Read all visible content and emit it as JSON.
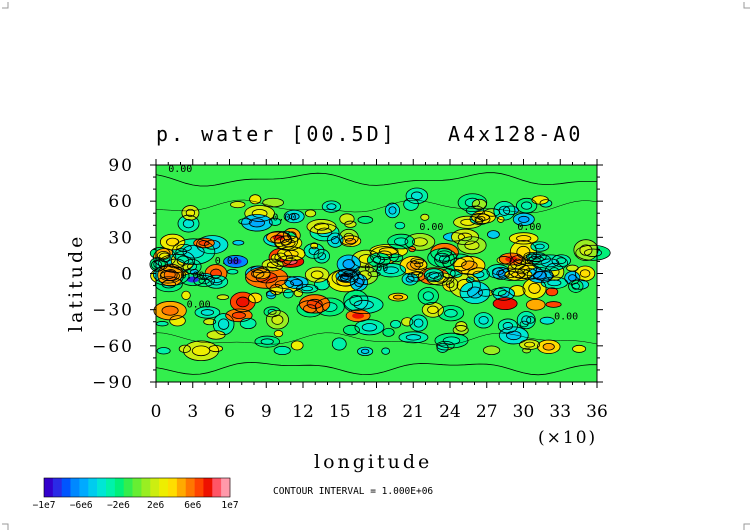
{
  "chart_data": {
    "type": "heatmap",
    "title": "p. water [00.5D]",
    "subtitle": "A4x128-A0",
    "xlabel": "longitude",
    "ylabel": "latitude",
    "x_ticks": [
      "0",
      "3",
      "6",
      "9",
      "12",
      "15",
      "18",
      "21",
      "24",
      "27",
      "30",
      "33",
      "36"
    ],
    "x_scale_note": "(×10)",
    "y_ticks": [
      "90",
      "60",
      "30",
      "0",
      "−30",
      "−60",
      "−90"
    ],
    "xlim": [
      0,
      360
    ],
    "ylim": [
      -90,
      90
    ],
    "contour_labels": [
      "0.00",
      "0.00",
      "0.00",
      "0.00",
      "0.00",
      "0.00",
      "0.00",
      "0.00",
      "0.00"
    ],
    "colorbar": {
      "labels": [
        "−1e7",
        "−6e6",
        "−2e6",
        "2e6",
        "6e6",
        "1e7"
      ],
      "range": [
        -10000000,
        10000000
      ],
      "colors": [
        "#3300cc",
        "#2a2ae6",
        "#0055ff",
        "#0088ff",
        "#00aaff",
        "#00ccee",
        "#00e6d5",
        "#00f2aa",
        "#00f07a",
        "#33ee4d",
        "#66ee33",
        "#99ee22",
        "#ccee11",
        "#eeee00",
        "#ffdd00",
        "#ffaa00",
        "#ff7700",
        "#ff4400",
        "#ee1100",
        "#ff5566",
        "#ff99aa"
      ]
    },
    "contour_interval_text": "CONTOUR INTERVAL = 1.000E+06",
    "grid": false
  }
}
